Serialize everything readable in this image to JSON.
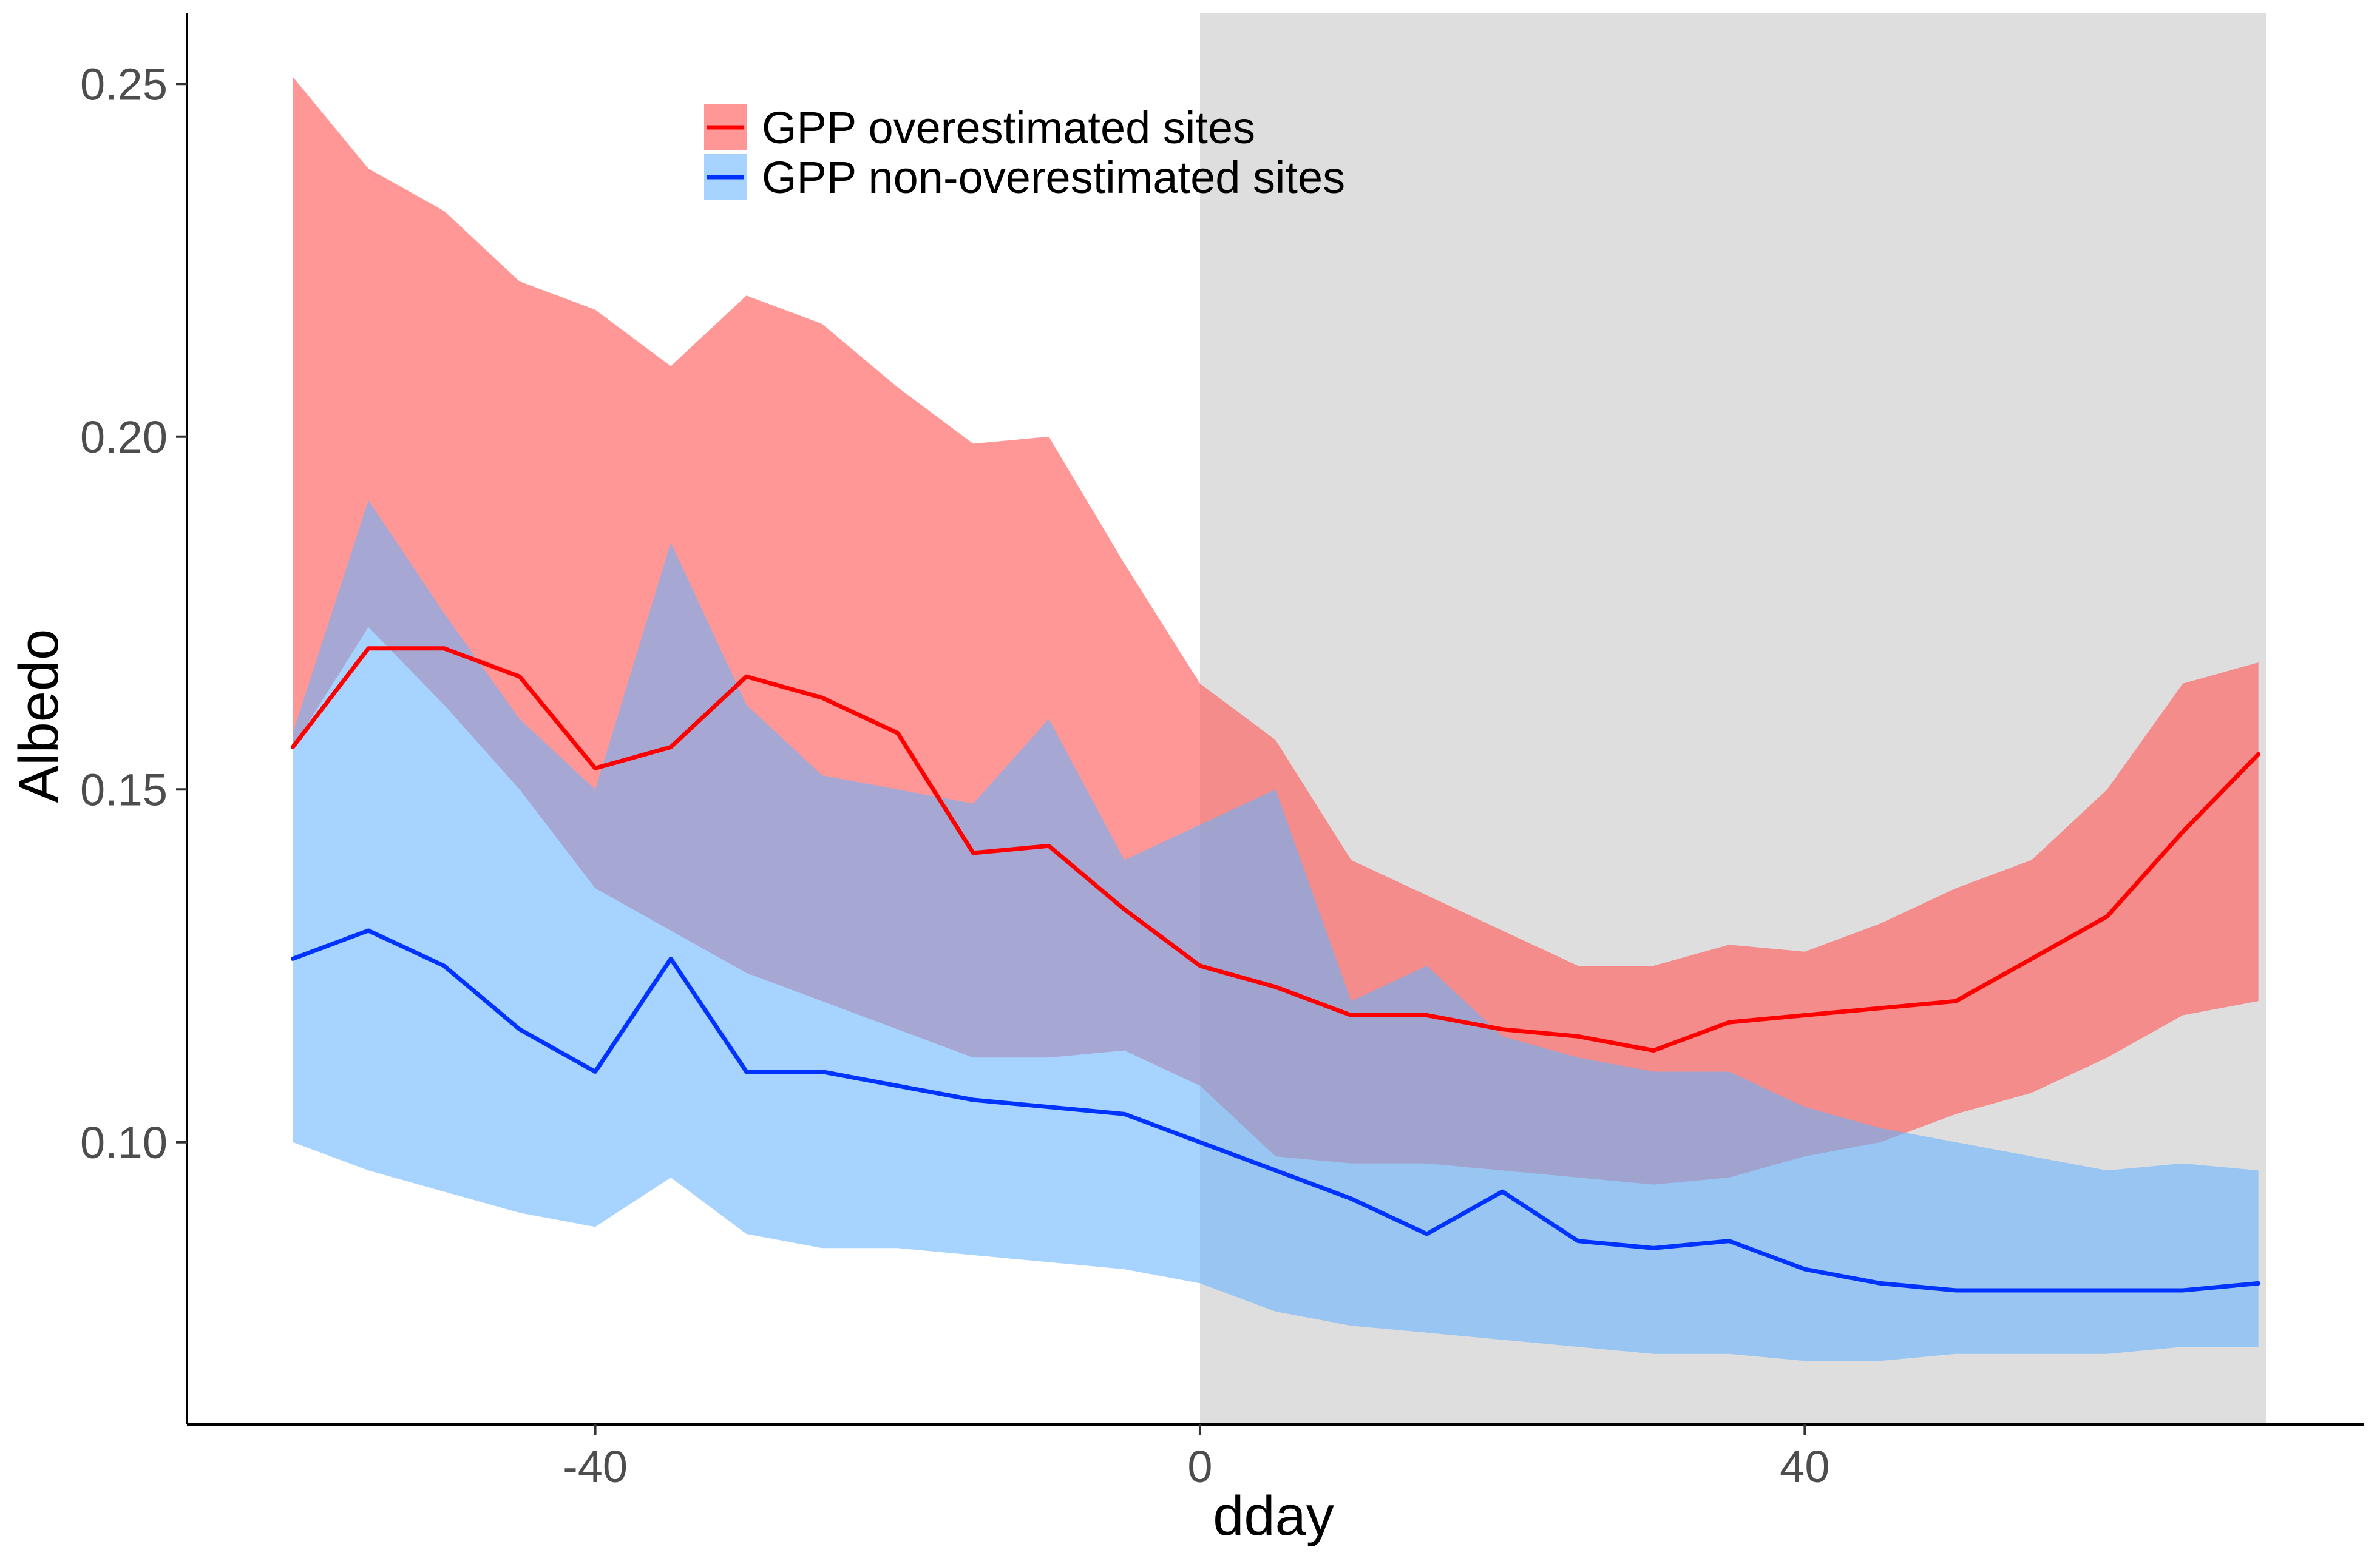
{
  "chart_data": {
    "type": "line",
    "title": "",
    "xlabel": "dday",
    "ylabel": "Albedo",
    "xlim": [
      -67,
      77
    ],
    "ylim": [
      0.06,
      0.26
    ],
    "x_ticks": [
      -40,
      0,
      40
    ],
    "x_tick_labels": [
      "-40",
      "0",
      "40"
    ],
    "y_ticks": [
      0.1,
      0.15,
      0.2,
      0.25
    ],
    "y_tick_labels": [
      "0.10",
      "0.15",
      "0.20",
      "0.25"
    ],
    "grid": false,
    "legend_position": "top-center",
    "shaded_region": {
      "x_start": 0,
      "x_end": 70.5,
      "color": "#dedede"
    },
    "series": [
      {
        "name": "GPP overestimated sites",
        "line_color": "#ff0000",
        "ribbon_color": "#ff6666",
        "ribbon_opacity": 0.68,
        "x": [
          -60,
          -55,
          -50,
          -45,
          -40,
          -35,
          -30,
          -25,
          -20,
          -15,
          -10,
          -5,
          0,
          5,
          10,
          15,
          20,
          25,
          30,
          35,
          40,
          45,
          50,
          55,
          60,
          65,
          70
        ],
        "mean": [
          0.156,
          0.17,
          0.17,
          0.166,
          0.153,
          0.156,
          0.166,
          0.163,
          0.158,
          0.141,
          0.142,
          0.133,
          0.125,
          0.122,
          0.118,
          0.118,
          0.116,
          0.115,
          0.113,
          0.117,
          0.118,
          0.119,
          0.12,
          0.126,
          0.132,
          0.144,
          0.155
        ],
        "upper": [
          0.251,
          0.238,
          0.232,
          0.222,
          0.218,
          0.21,
          0.22,
          0.216,
          0.207,
          0.199,
          0.2,
          0.182,
          0.165,
          0.157,
          0.14,
          0.135,
          0.13,
          0.125,
          0.125,
          0.128,
          0.127,
          0.131,
          0.136,
          0.14,
          0.15,
          0.165,
          0.168
        ],
        "lower": [
          0.156,
          0.173,
          0.162,
          0.15,
          0.136,
          0.13,
          0.124,
          0.12,
          0.116,
          0.112,
          0.112,
          0.113,
          0.108,
          0.098,
          0.097,
          0.097,
          0.096,
          0.095,
          0.094,
          0.095,
          0.098,
          0.1,
          0.104,
          0.107,
          0.112,
          0.118,
          0.12
        ]
      },
      {
        "name": "GPP non-overestimated sites",
        "line_color": "#0033ff",
        "ribbon_color": "#66b3ff",
        "ribbon_opacity": 0.58,
        "x": [
          -60,
          -55,
          -50,
          -45,
          -40,
          -35,
          -30,
          -25,
          -20,
          -15,
          -10,
          -5,
          0,
          5,
          10,
          15,
          20,
          25,
          30,
          35,
          40,
          45,
          50,
          55,
          60,
          65,
          70
        ],
        "mean": [
          0.126,
          0.13,
          0.125,
          0.116,
          0.11,
          0.126,
          0.11,
          0.11,
          0.108,
          0.106,
          0.105,
          0.104,
          0.1,
          0.096,
          0.092,
          0.087,
          0.093,
          0.086,
          0.085,
          0.086,
          0.082,
          0.08,
          0.079,
          0.079,
          0.079,
          0.079,
          0.08
        ],
        "upper": [
          0.158,
          0.191,
          0.175,
          0.16,
          0.15,
          0.185,
          0.162,
          0.152,
          0.15,
          0.148,
          0.16,
          0.14,
          0.145,
          0.15,
          0.12,
          0.125,
          0.115,
          0.112,
          0.11,
          0.11,
          0.105,
          0.102,
          0.1,
          0.098,
          0.096,
          0.097,
          0.096
        ],
        "lower": [
          0.1,
          0.096,
          0.093,
          0.09,
          0.088,
          0.095,
          0.087,
          0.085,
          0.085,
          0.084,
          0.083,
          0.082,
          0.08,
          0.076,
          0.074,
          0.073,
          0.072,
          0.071,
          0.07,
          0.07,
          0.069,
          0.069,
          0.07,
          0.07,
          0.07,
          0.071,
          0.071
        ]
      }
    ]
  }
}
